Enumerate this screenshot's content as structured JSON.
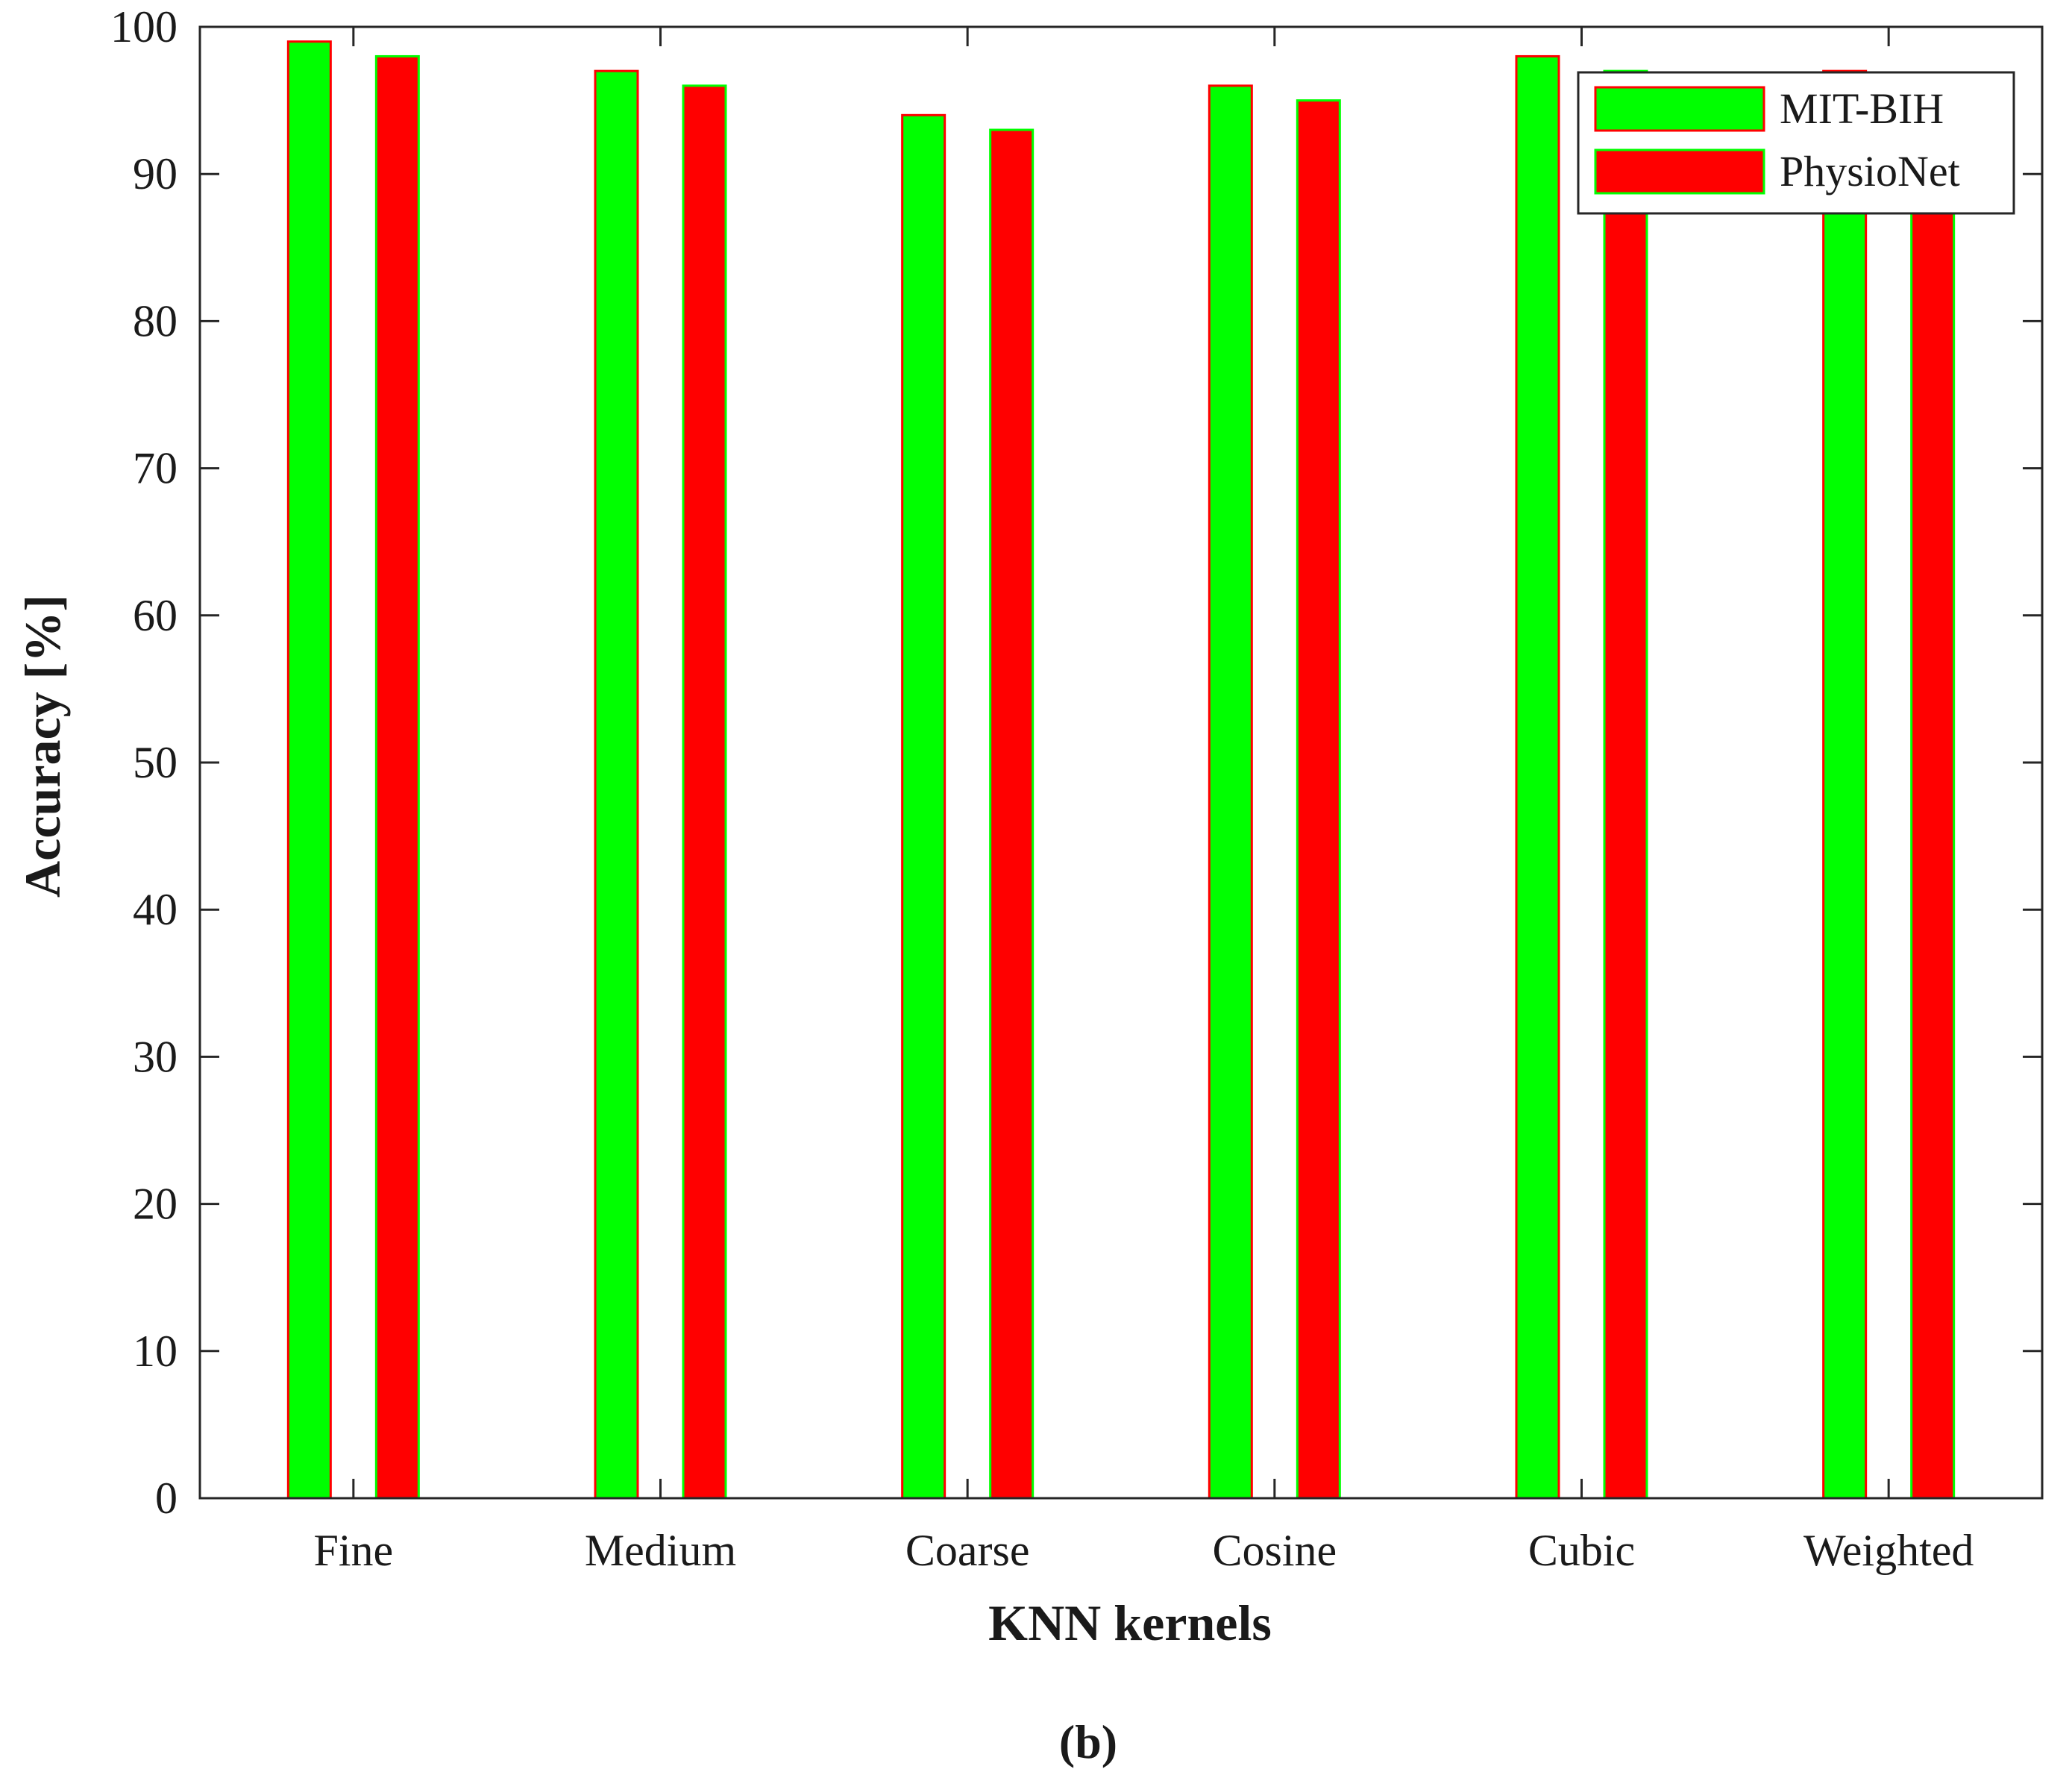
{
  "chart_data": {
    "type": "bar",
    "categories": [
      "Fine",
      "Medium",
      "Coarse",
      "Cosine",
      "Cubic",
      "Weighted"
    ],
    "series": [
      {
        "name": "MIT-BIH",
        "values": [
          99,
          97,
          94,
          96,
          98,
          97
        ],
        "color": "#00ff00",
        "edge_color": "#ff0000"
      },
      {
        "name": "PhysioNet",
        "values": [
          98,
          96,
          93,
          95,
          97,
          96
        ],
        "color": "#ff0000",
        "edge_color": "#00ff00"
      }
    ],
    "xlabel": "KNN kernels",
    "ylabel": "Accuracy [%]",
    "ylim": [
      0,
      100
    ],
    "yticks": [
      0,
      10,
      20,
      30,
      40,
      50,
      60,
      70,
      80,
      90,
      100
    ],
    "grid": false,
    "legend_position": "top-right"
  },
  "caption": "(b)"
}
